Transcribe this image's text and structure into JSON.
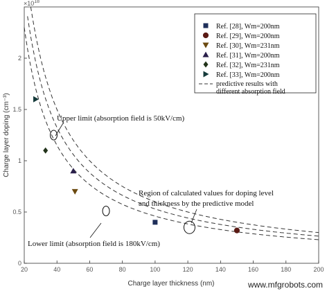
{
  "chart_data": {
    "type": "scatter",
    "title": "",
    "xlabel": "Charge layer thickness (nm)",
    "ylabel": "Charge layer doping (cm⁻³)",
    "y_multiplier": "×10",
    "y_multiplier_exp": "18",
    "xlim": [
      20,
      200
    ],
    "ylim": [
      0,
      2.5
    ],
    "x_ticks": [
      20,
      40,
      60,
      80,
      100,
      120,
      140,
      160,
      180,
      200
    ],
    "y_ticks": [
      0,
      0.5,
      1,
      1.5,
      2
    ],
    "grid": false,
    "legend_position": "top-right",
    "series": [
      {
        "name": "Ref. [28], Wm=200nm",
        "marker": "square",
        "points": [
          [
            100,
            0.4
          ]
        ]
      },
      {
        "name": "Ref. [29], Wm=200nm",
        "marker": "circle",
        "points": [
          [
            150,
            0.32
          ]
        ]
      },
      {
        "name": "Ref. [30], Wm=231nm",
        "marker": "triangle-down",
        "points": [
          [
            51,
            0.7
          ]
        ]
      },
      {
        "name": "Ref. [31], Wm=200nm",
        "marker": "triangle-up",
        "points": [
          [
            50,
            0.9
          ]
        ]
      },
      {
        "name": "Ref. [32], Wm=231nm",
        "marker": "diamond",
        "points": [
          [
            33,
            1.1
          ]
        ]
      },
      {
        "name": "Ref. [33], Wm=200nm",
        "marker": "triangle-right",
        "points": [
          [
            27,
            1.6
          ]
        ]
      }
    ],
    "curves": {
      "name_line1": "predictive results with",
      "name_line2": "different absorption field",
      "style": "dashed",
      "constants_nm_e18": [
        46,
        53,
        60
      ]
    },
    "annotations": {
      "upper": "Upper limit (absorption field is 50kV/cm)",
      "lower": "Lower limit (absorption field is 180kV/cm)",
      "region_line1": "Region of calculated values for doping level",
      "region_line2": "and thickness by the predictive model",
      "ellipses": [
        {
          "x": 38,
          "y": 1.25
        },
        {
          "x": 70,
          "y": 0.51
        },
        {
          "x": 121,
          "y": 0.35
        }
      ]
    }
  },
  "watermark": "www.mfgrobots.com"
}
